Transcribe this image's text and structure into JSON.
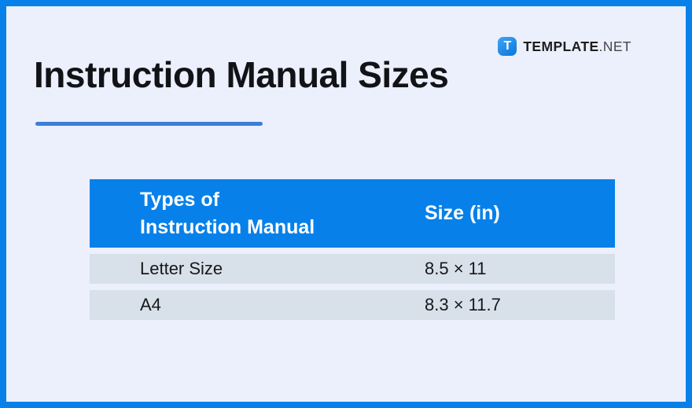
{
  "page": {
    "title": "Instruction Manual Sizes"
  },
  "brand": {
    "icon_letter": "T",
    "name": "TEMPLATE",
    "tld": ".NET"
  },
  "table": {
    "headers": [
      "Types of\nInstruction Manual",
      "Size (in)"
    ],
    "rows": [
      {
        "type": "Letter Size",
        "size": "8.5 × 11"
      },
      {
        "type": "A4",
        "size": "8.3 × 11.7"
      }
    ]
  },
  "chart_data": {
    "type": "table",
    "title": "Instruction Manual Sizes",
    "columns": [
      "Types of Instruction Manual",
      "Size (in)"
    ],
    "rows": [
      [
        "Letter Size",
        "8.5 × 11"
      ],
      [
        "A4",
        "8.3 × 11.7"
      ]
    ]
  },
  "colors": {
    "frame_border": "#0781e9",
    "background": "#eceffc",
    "header_bg": "#0781e9",
    "header_text": "#ffffff",
    "row_bg": "#d8e1ea",
    "accent_underline": "#3a7fd8",
    "title_text": "#121316"
  }
}
